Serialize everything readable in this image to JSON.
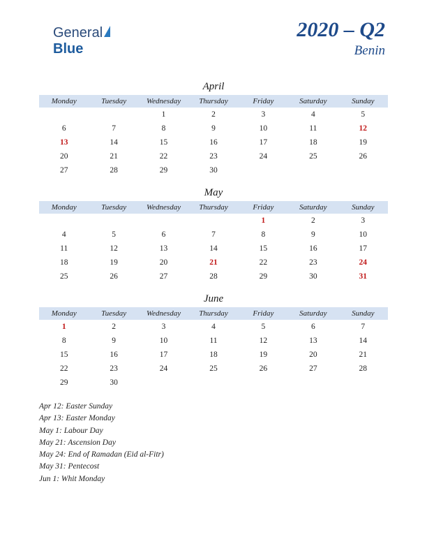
{
  "logo": {
    "part1": "General",
    "part2": "Blue"
  },
  "header": {
    "quarter": "2020 – Q2",
    "country": "Benin"
  },
  "day_headers": [
    "Monday",
    "Tuesday",
    "Wednesday",
    "Thursday",
    "Friday",
    "Saturday",
    "Sunday"
  ],
  "colors": {
    "header_bg": "#d6e2f2",
    "accent": "#1e4a8a",
    "holiday": "#c01818",
    "text": "#222222"
  },
  "months": [
    {
      "name": "April",
      "weeks": [
        [
          null,
          null,
          1,
          2,
          3,
          4,
          5
        ],
        [
          6,
          7,
          8,
          9,
          10,
          11,
          12
        ],
        [
          13,
          14,
          15,
          16,
          17,
          18,
          19
        ],
        [
          20,
          21,
          22,
          23,
          24,
          25,
          26
        ],
        [
          27,
          28,
          29,
          30,
          null,
          null,
          null
        ]
      ],
      "holidays": [
        12,
        13
      ]
    },
    {
      "name": "May",
      "weeks": [
        [
          null,
          null,
          null,
          null,
          1,
          2,
          3
        ],
        [
          4,
          5,
          6,
          7,
          8,
          9,
          10
        ],
        [
          11,
          12,
          13,
          14,
          15,
          16,
          17
        ],
        [
          18,
          19,
          20,
          21,
          22,
          23,
          24
        ],
        [
          25,
          26,
          27,
          28,
          29,
          30,
          31
        ]
      ],
      "holidays": [
        1,
        21,
        24,
        31
      ]
    },
    {
      "name": "June",
      "weeks": [
        [
          1,
          2,
          3,
          4,
          5,
          6,
          7
        ],
        [
          8,
          9,
          10,
          11,
          12,
          13,
          14
        ],
        [
          15,
          16,
          17,
          18,
          19,
          20,
          21
        ],
        [
          22,
          23,
          24,
          25,
          26,
          27,
          28
        ],
        [
          29,
          30,
          null,
          null,
          null,
          null,
          null
        ]
      ],
      "holidays": [
        1
      ]
    }
  ],
  "holiday_list": [
    "Apr 12: Easter Sunday",
    "Apr 13: Easter Monday",
    "May 1: Labour Day",
    "May 21: Ascension Day",
    "May 24: End of Ramadan (Eid al-Fitr)",
    "May 31: Pentecost",
    "Jun 1: Whit Monday"
  ]
}
